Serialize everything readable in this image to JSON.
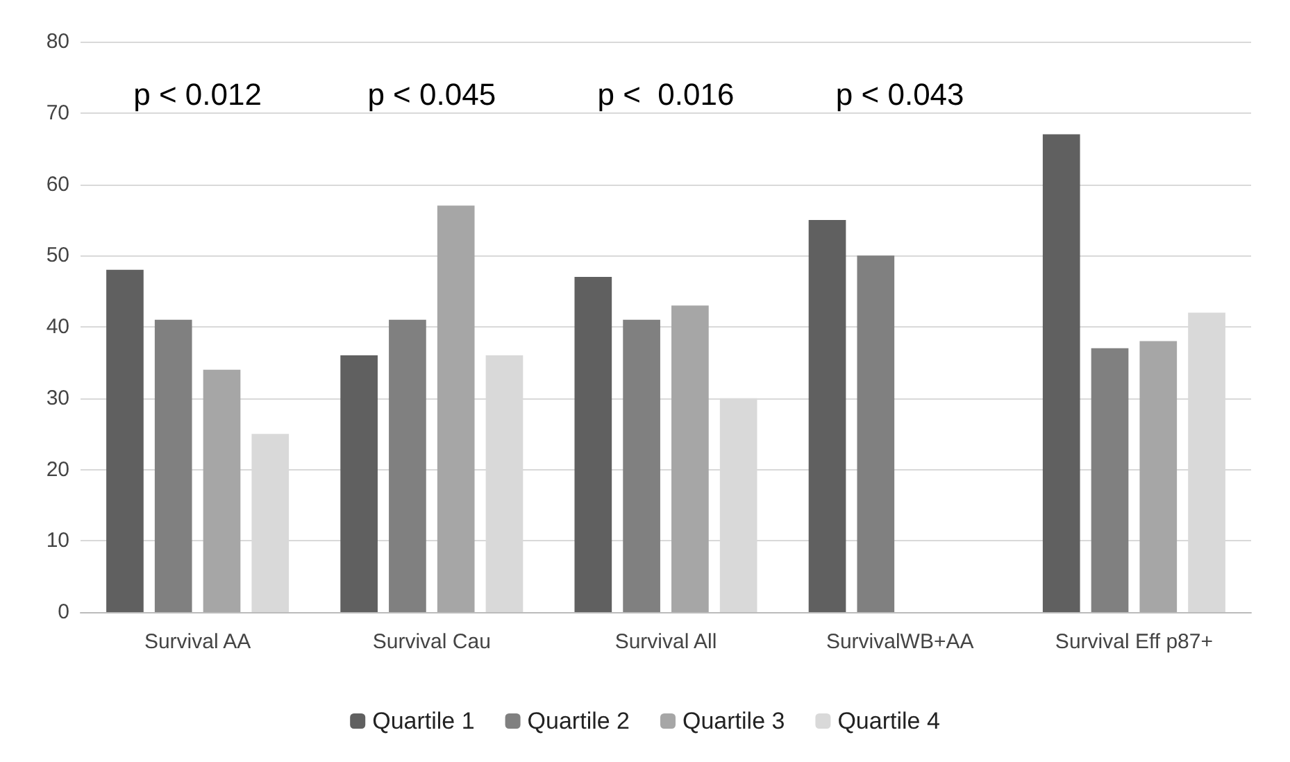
{
  "chart_data": {
    "type": "bar",
    "categories": [
      "Survival AA",
      "Survival Cau",
      "Survival All",
      "SurvivalWB+AA",
      "Survival Eff p87+"
    ],
    "series": [
      {
        "name": "Quartile 1",
        "color": "#606060",
        "values": [
          48,
          36,
          47,
          55,
          67
        ]
      },
      {
        "name": "Quartile 2",
        "color": "#808080",
        "values": [
          41,
          41,
          41,
          50,
          37
        ]
      },
      {
        "name": "Quartile 3",
        "color": "#a6a6a6",
        "values": [
          34,
          57,
          43,
          null,
          38
        ]
      },
      {
        "name": "Quartile 4",
        "color": "#d9d9d9",
        "values": [
          25,
          36,
          30,
          null,
          42
        ]
      }
    ],
    "ylim": [
      0,
      80
    ],
    "yticks": [
      0,
      10,
      20,
      30,
      40,
      50,
      60,
      70,
      80
    ],
    "grid": "y",
    "legend": "bottom",
    "annotations": [
      "p < 0.012",
      "p < 0.045",
      "p <  0.016",
      "p < 0.043"
    ]
  }
}
